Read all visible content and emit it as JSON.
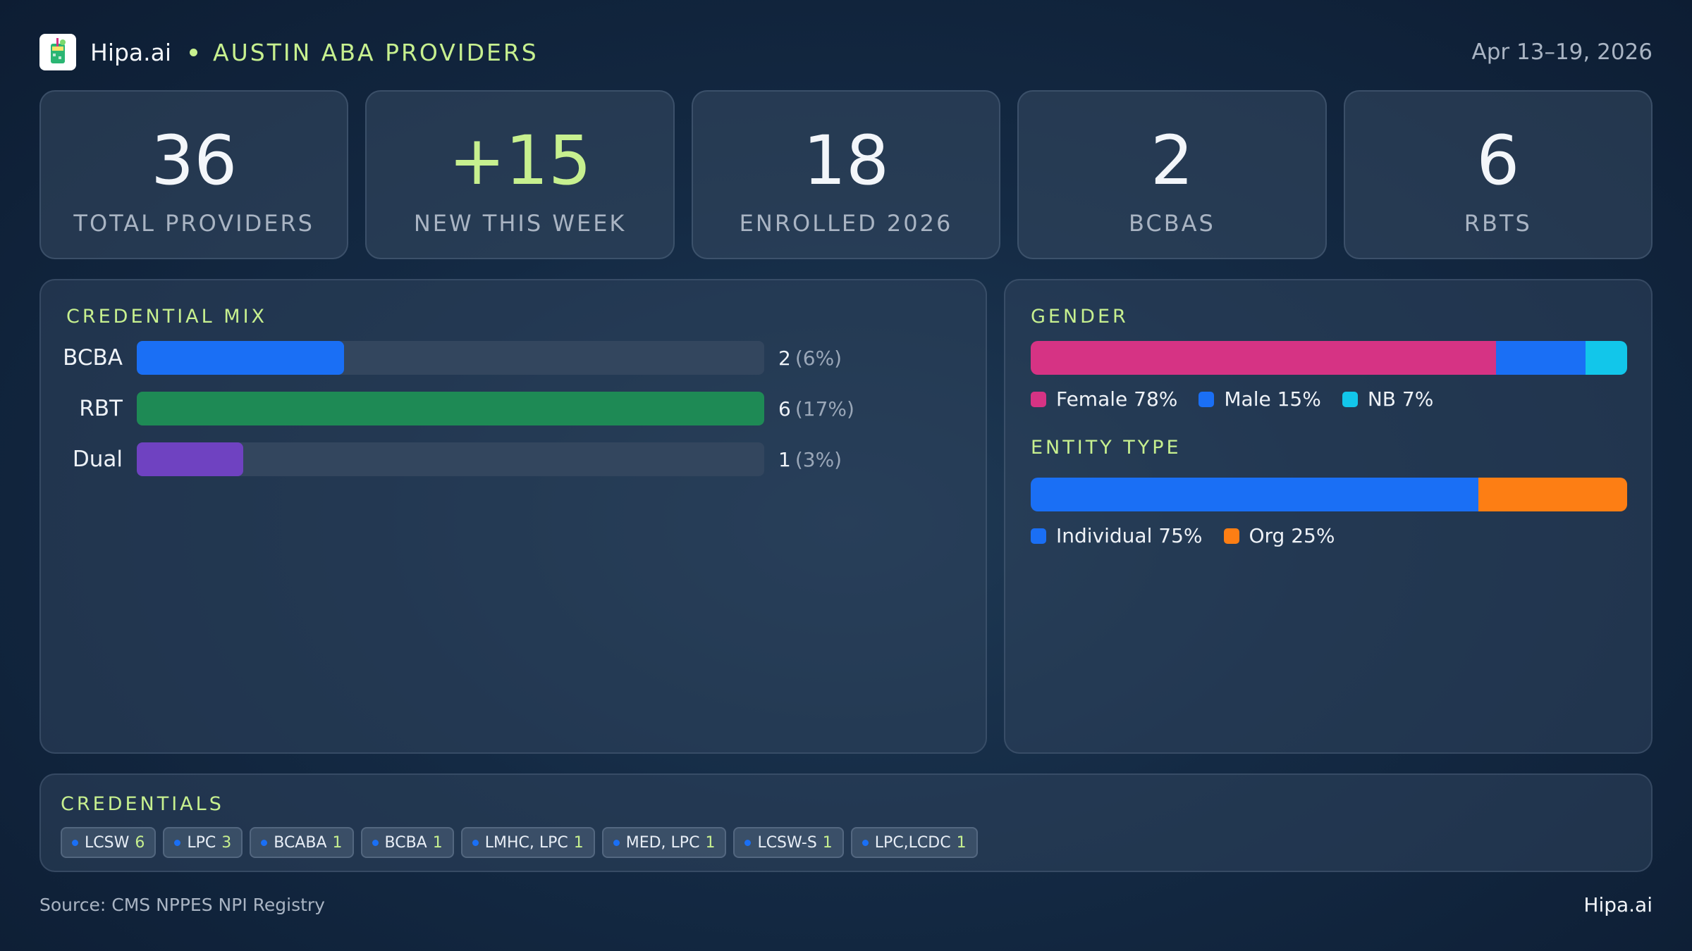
{
  "header": {
    "brand": "Hipa.ai",
    "region": "AUSTIN ABA PROVIDERS",
    "date_range": "Apr 13–19, 2026",
    "logo_icon": "cocktail-glass-icon"
  },
  "kpis": [
    {
      "value": "36",
      "label": "TOTAL PROVIDERS"
    },
    {
      "value": "+15",
      "label": "NEW THIS WEEK"
    },
    {
      "value": "18",
      "label": "ENROLLED 2026"
    },
    {
      "value": "2",
      "label": "BCBAS"
    },
    {
      "value": "6",
      "label": "RBTS"
    }
  ],
  "credential_mix": {
    "title": "CREDENTIAL MIX",
    "rows": [
      {
        "label": "BCBA",
        "count": "2",
        "pct": "(6%)",
        "fill_fraction": 0.33,
        "color": "#1a6ff5"
      },
      {
        "label": "RBT",
        "count": "6",
        "pct": "(17%)",
        "fill_fraction": 1.0,
        "color": "#1e8a55"
      },
      {
        "label": "Dual",
        "count": "1",
        "pct": "(3%)",
        "fill_fraction": 0.17,
        "color": "#6f42c1"
      }
    ]
  },
  "gender": {
    "title": "GENDER",
    "segments": [
      {
        "label": "Female 78%",
        "share": 78,
        "color": "#d63384"
      },
      {
        "label": "Male 15%",
        "share": 15,
        "color": "#1a6ff5"
      },
      {
        "label": "NB 7%",
        "share": 7,
        "color": "#12c6ea"
      }
    ]
  },
  "entity_type": {
    "title": "ENTITY TYPE",
    "segments": [
      {
        "label": "Individual 75%",
        "share": 75,
        "color": "#1a6ff5"
      },
      {
        "label": "Org 25%",
        "share": 25,
        "color": "#fd7e14"
      }
    ]
  },
  "credentials": {
    "title": "CREDENTIALS",
    "chips": [
      {
        "name": "LCSW",
        "count": "6"
      },
      {
        "name": "LPC",
        "count": "3"
      },
      {
        "name": "BCABA",
        "count": "1"
      },
      {
        "name": "BCBA",
        "count": "1"
      },
      {
        "name": "LMHC, LPC",
        "count": "1"
      },
      {
        "name": "MED, LPC",
        "count": "1"
      },
      {
        "name": "LCSW-S",
        "count": "1"
      },
      {
        "name": "LPC,LCDC",
        "count": "1"
      }
    ]
  },
  "footer": {
    "source": "Source: CMS NPPES NPI Registry",
    "brand": "Hipa.ai"
  }
}
